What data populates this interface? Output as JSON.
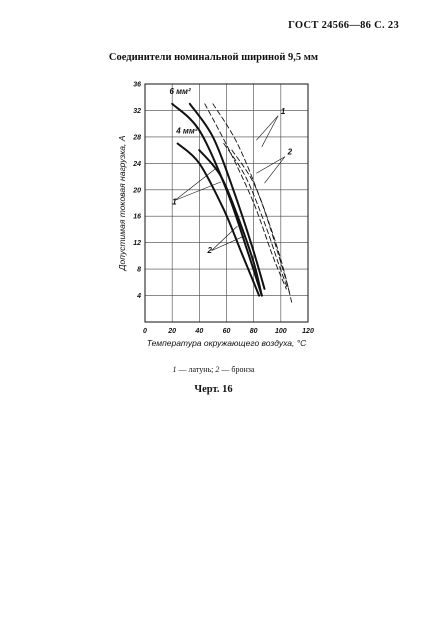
{
  "header": {
    "text": "ГОСТ 24566—86 С. 23"
  },
  "title": "Соединители номинальной шириной 9,5 мм",
  "legend": {
    "n1": "1",
    "t1": " — латунь; ",
    "n2": "2",
    "t2": " — бронза"
  },
  "caption": "Черт. 16",
  "chart_data": {
    "type": "line",
    "title": "",
    "xlabel": "Температура окружающего воздуха, °С",
    "ylabel": "Допустимая токовая нагрузка, А",
    "xlim": [
      0,
      120
    ],
    "ylim": [
      0,
      36
    ],
    "x_ticks": [
      0,
      20,
      40,
      60,
      80,
      100,
      120
    ],
    "y_ticks": [
      4,
      8,
      12,
      16,
      20,
      24,
      28,
      32,
      36
    ],
    "grid": true,
    "series": [
      {
        "group": "6 мм²",
        "material": "1",
        "style": "solid",
        "points": [
          [
            20,
            33
          ],
          [
            40,
            29
          ],
          [
            60,
            20
          ],
          [
            75,
            11
          ],
          [
            86,
            4
          ]
        ]
      },
      {
        "group": "6 мм²",
        "material": "2",
        "style": "solid",
        "points": [
          [
            33,
            33
          ],
          [
            50,
            28
          ],
          [
            65,
            20
          ],
          [
            78,
            12
          ],
          [
            88,
            5
          ]
        ]
      },
      {
        "group": "4 мм²",
        "material": "1",
        "style": "solid",
        "points": [
          [
            24,
            27
          ],
          [
            40,
            24
          ],
          [
            58,
            17
          ],
          [
            72,
            10
          ],
          [
            84,
            4
          ]
        ]
      },
      {
        "group": "4 мм²",
        "material": "2",
        "style": "solid",
        "points": [
          [
            40,
            26
          ],
          [
            56,
            22
          ],
          [
            70,
            15
          ],
          [
            80,
            9
          ],
          [
            86,
            4
          ]
        ]
      },
      {
        "group": "6 мм²",
        "material": "1",
        "style": "dashed",
        "points": [
          [
            44,
            33
          ],
          [
            62,
            26
          ],
          [
            80,
            18
          ],
          [
            94,
            10
          ],
          [
            104,
            5
          ]
        ]
      },
      {
        "group": "6 мм²",
        "material": "2",
        "style": "dashed",
        "points": [
          [
            50,
            33
          ],
          [
            68,
            27
          ],
          [
            86,
            18
          ],
          [
            100,
            9
          ],
          [
            107,
            4
          ]
        ]
      },
      {
        "group": "4 мм²",
        "material": "1",
        "style": "dashed",
        "points": [
          [
            58,
            27
          ],
          [
            74,
            22
          ],
          [
            88,
            15
          ],
          [
            98,
            9
          ],
          [
            105,
            5
          ]
        ]
      },
      {
        "group": "4 мм²",
        "material": "2",
        "style": "dashed",
        "points": [
          [
            64,
            26
          ],
          [
            80,
            21
          ],
          [
            93,
            14
          ],
          [
            102,
            8
          ],
          [
            108,
            3
          ]
        ]
      }
    ],
    "annotations": [
      {
        "text": "6 мм²",
        "x": 18,
        "y": 34.5
      },
      {
        "text": "4 мм²",
        "x": 23,
        "y": 28.5
      },
      {
        "text": "1",
        "x": 100,
        "y": 31.5
      },
      {
        "text": "2",
        "x": 105,
        "y": 25.3
      },
      {
        "text": "1",
        "x": 20,
        "y": 17.8
      },
      {
        "text": "2",
        "x": 46,
        "y": 10.4
      }
    ]
  }
}
